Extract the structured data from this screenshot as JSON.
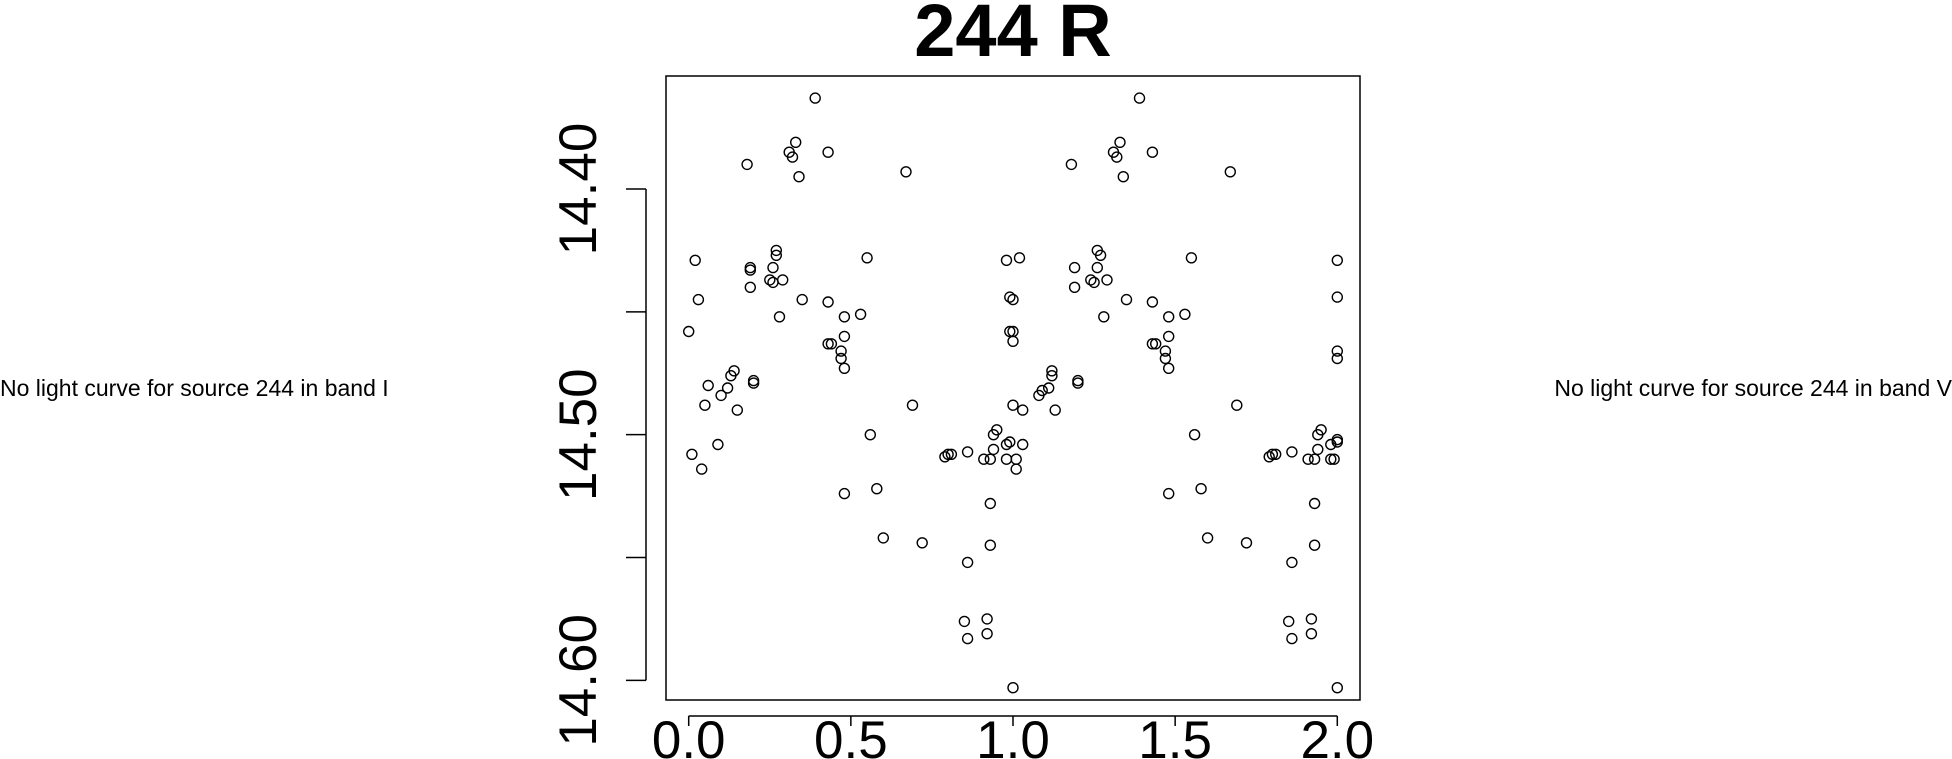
{
  "notes": {
    "left": "No light curve for source 244 in band I",
    "right": "No light curve for source 244 in band V"
  },
  "chart_data": {
    "type": "scatter",
    "title": "244 R",
    "xlabel": "",
    "ylabel": "",
    "xlim": [
      -0.07,
      2.07
    ],
    "ylim": [
      14.608,
      14.354
    ],
    "y_inverted": true,
    "grid": false,
    "legend": "none",
    "marker_color": "#000000",
    "x_ticks": [
      {
        "value": 0.0,
        "label": "0.0"
      },
      {
        "value": 0.5,
        "label": "0.5"
      },
      {
        "value": 1.0,
        "label": "1.0"
      },
      {
        "value": 1.5,
        "label": "1.5"
      },
      {
        "value": 2.0,
        "label": "2.0"
      }
    ],
    "y_ticks": [
      {
        "value": 14.4,
        "label": "14.40"
      },
      {
        "value": 14.45,
        "label": ""
      },
      {
        "value": 14.5,
        "label": "14.50"
      },
      {
        "value": 14.55,
        "label": ""
      },
      {
        "value": 14.6,
        "label": "14.60"
      }
    ],
    "series": [
      {
        "points": [
          [
            0.0,
            14.458
          ],
          [
            0.01,
            14.508
          ],
          [
            0.02,
            14.429
          ],
          [
            0.03,
            14.445
          ],
          [
            0.04,
            14.514
          ],
          [
            0.05,
            14.488
          ],
          [
            0.06,
            14.48
          ],
          [
            0.09,
            14.504
          ],
          [
            0.1,
            14.484
          ],
          [
            0.12,
            14.481
          ],
          [
            0.13,
            14.476
          ],
          [
            0.14,
            14.474
          ],
          [
            0.15,
            14.49
          ],
          [
            0.18,
            14.39
          ],
          [
            0.19,
            14.432
          ],
          [
            0.19,
            14.433
          ],
          [
            0.19,
            14.44
          ],
          [
            0.2,
            14.479
          ],
          [
            0.2,
            14.478
          ],
          [
            0.25,
            14.437
          ],
          [
            0.26,
            14.438
          ],
          [
            0.26,
            14.432
          ],
          [
            0.27,
            14.425
          ],
          [
            0.27,
            14.427
          ],
          [
            0.28,
            14.452
          ],
          [
            0.29,
            14.437
          ],
          [
            0.31,
            14.385
          ],
          [
            0.32,
            14.387
          ],
          [
            0.33,
            14.381
          ],
          [
            0.34,
            14.395
          ],
          [
            0.35,
            14.445
          ],
          [
            0.39,
            14.363
          ],
          [
            0.43,
            14.446
          ],
          [
            0.43,
            14.385
          ],
          [
            0.43,
            14.463
          ],
          [
            0.44,
            14.463
          ],
          [
            0.47,
            14.469
          ],
          [
            0.47,
            14.466
          ],
          [
            0.48,
            14.473
          ],
          [
            0.48,
            14.46
          ],
          [
            0.48,
            14.452
          ],
          [
            0.48,
            14.524
          ],
          [
            0.53,
            14.451
          ],
          [
            0.55,
            14.428
          ],
          [
            0.56,
            14.5
          ],
          [
            0.58,
            14.522
          ],
          [
            0.6,
            14.542
          ],
          [
            0.67,
            14.393
          ],
          [
            0.69,
            14.488
          ],
          [
            0.72,
            14.544
          ],
          [
            0.79,
            14.509
          ],
          [
            0.8,
            14.508
          ],
          [
            0.81,
            14.508
          ],
          [
            0.86,
            14.507
          ],
          [
            0.86,
            14.552
          ],
          [
            0.85,
            14.576
          ],
          [
            0.86,
            14.583
          ],
          [
            0.91,
            14.51
          ],
          [
            0.92,
            14.575
          ],
          [
            0.92,
            14.581
          ],
          [
            0.93,
            14.51
          ],
          [
            0.93,
            14.528
          ],
          [
            0.93,
            14.545
          ],
          [
            0.94,
            14.5
          ],
          [
            0.94,
            14.506
          ],
          [
            0.95,
            14.498
          ],
          [
            0.98,
            14.504
          ],
          [
            0.98,
            14.51
          ],
          [
            0.98,
            14.429
          ],
          [
            0.99,
            14.444
          ],
          [
            0.99,
            14.503
          ],
          [
            0.99,
            14.458
          ],
          [
            1.0,
            14.458
          ],
          [
            1.0,
            14.462
          ],
          [
            1.0,
            14.445
          ],
          [
            1.0,
            14.488
          ],
          [
            1.0,
            14.603
          ],
          [
            1.01,
            14.51
          ],
          [
            1.01,
            14.514
          ],
          [
            1.02,
            14.428
          ],
          [
            1.03,
            14.504
          ],
          [
            1.03,
            14.49
          ],
          [
            1.08,
            14.484
          ],
          [
            1.09,
            14.482
          ],
          [
            1.11,
            14.481
          ],
          [
            1.12,
            14.476
          ],
          [
            1.12,
            14.474
          ],
          [
            1.13,
            14.49
          ],
          [
            1.18,
            14.39
          ],
          [
            1.19,
            14.432
          ],
          [
            1.19,
            14.44
          ],
          [
            1.2,
            14.479
          ],
          [
            1.2,
            14.478
          ],
          [
            1.24,
            14.437
          ],
          [
            1.25,
            14.438
          ],
          [
            1.26,
            14.432
          ],
          [
            1.26,
            14.425
          ],
          [
            1.27,
            14.427
          ],
          [
            1.28,
            14.452
          ],
          [
            1.29,
            14.437
          ],
          [
            1.31,
            14.385
          ],
          [
            1.32,
            14.387
          ],
          [
            1.33,
            14.381
          ],
          [
            1.34,
            14.395
          ],
          [
            1.35,
            14.445
          ],
          [
            1.39,
            14.363
          ],
          [
            1.43,
            14.446
          ],
          [
            1.43,
            14.385
          ],
          [
            1.43,
            14.463
          ],
          [
            1.44,
            14.463
          ],
          [
            1.47,
            14.469
          ],
          [
            1.47,
            14.466
          ],
          [
            1.48,
            14.473
          ],
          [
            1.48,
            14.46
          ],
          [
            1.48,
            14.452
          ],
          [
            1.48,
            14.524
          ],
          [
            1.53,
            14.451
          ],
          [
            1.55,
            14.428
          ],
          [
            1.56,
            14.5
          ],
          [
            1.58,
            14.522
          ],
          [
            1.6,
            14.542
          ],
          [
            1.67,
            14.393
          ],
          [
            1.69,
            14.488
          ],
          [
            1.72,
            14.544
          ],
          [
            1.79,
            14.509
          ],
          [
            1.8,
            14.508
          ],
          [
            1.81,
            14.508
          ],
          [
            1.86,
            14.507
          ],
          [
            1.86,
            14.552
          ],
          [
            1.85,
            14.576
          ],
          [
            1.86,
            14.583
          ],
          [
            1.91,
            14.51
          ],
          [
            1.92,
            14.575
          ],
          [
            1.92,
            14.581
          ],
          [
            1.93,
            14.51
          ],
          [
            1.93,
            14.528
          ],
          [
            1.93,
            14.545
          ],
          [
            1.94,
            14.5
          ],
          [
            1.94,
            14.506
          ],
          [
            1.95,
            14.498
          ],
          [
            1.98,
            14.504
          ],
          [
            1.98,
            14.51
          ],
          [
            1.99,
            14.51
          ],
          [
            2.0,
            14.429
          ],
          [
            2.0,
            14.444
          ],
          [
            2.0,
            14.466
          ],
          [
            2.0,
            14.469
          ],
          [
            2.0,
            14.502
          ],
          [
            2.0,
            14.503
          ],
          [
            2.0,
            14.603
          ]
        ]
      }
    ]
  }
}
